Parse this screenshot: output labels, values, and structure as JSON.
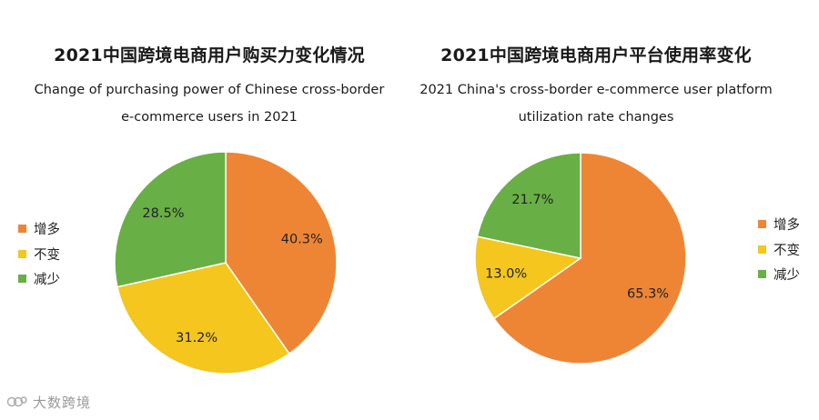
{
  "chart_data": [
    {
      "type": "pie",
      "title": "2021中国跨境电商用户购买力变化情况",
      "subtitle": [
        "Change of purchasing power of Chinese cross-border",
        "e-commerce users in 2021"
      ],
      "categories": [
        "增多",
        "不变",
        "减少"
      ],
      "values": [
        40.3,
        31.2,
        28.5
      ],
      "labels": [
        "40.3%",
        "31.2%",
        "28.5%"
      ],
      "colors": [
        "#EE8535",
        "#F4C61E",
        "#68AF45"
      ],
      "legend": "left"
    },
    {
      "type": "pie",
      "title": "2021中国跨境电商用户平台使用率变化",
      "subtitle": [
        "2021 China's cross-border e-commerce user platform",
        "utilization rate changes"
      ],
      "categories": [
        "增多",
        "不变",
        "减少"
      ],
      "values": [
        65.3,
        13.0,
        21.7
      ],
      "labels": [
        "65.3%",
        "13.0%",
        "21.7%"
      ],
      "colors": [
        "#EE8535",
        "#F4C61E",
        "#68AF45"
      ],
      "legend": "right"
    }
  ],
  "watermark": {
    "text": "大数跨境"
  }
}
